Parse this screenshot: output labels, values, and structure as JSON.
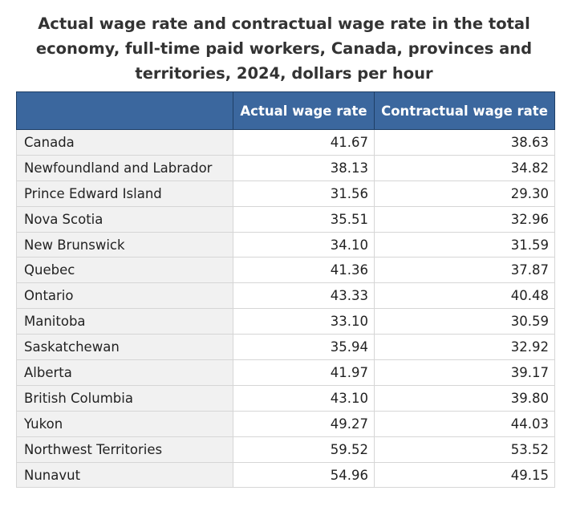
{
  "chart_data": {
    "type": "table",
    "title": "Actual wage rate and contractual wage rate in the total economy, full-time paid workers, Canada, provinces and territories, 2024, dollars per hour",
    "columns": [
      "",
      "Actual wage rate",
      "Contractual wage rate"
    ],
    "rows": [
      {
        "region": "Canada",
        "actual": "41.67",
        "contractual": "38.63"
      },
      {
        "region": "Newfoundland and Labrador",
        "actual": "38.13",
        "contractual": "34.82"
      },
      {
        "region": "Prince Edward Island",
        "actual": "31.56",
        "contractual": "29.30"
      },
      {
        "region": "Nova Scotia",
        "actual": "35.51",
        "contractual": "32.96"
      },
      {
        "region": "New Brunswick",
        "actual": "34.10",
        "contractual": "31.59"
      },
      {
        "region": "Quebec",
        "actual": "41.36",
        "contractual": "37.87"
      },
      {
        "region": "Ontario",
        "actual": "43.33",
        "contractual": "40.48"
      },
      {
        "region": "Manitoba",
        "actual": "33.10",
        "contractual": "30.59"
      },
      {
        "region": "Saskatchewan",
        "actual": "35.94",
        "contractual": "32.92"
      },
      {
        "region": "Alberta",
        "actual": "41.97",
        "contractual": "39.17"
      },
      {
        "region": "British Columbia",
        "actual": "43.10",
        "contractual": "39.80"
      },
      {
        "region": "Yukon",
        "actual": "49.27",
        "contractual": "44.03"
      },
      {
        "region": "Northwest Territories",
        "actual": "59.52",
        "contractual": "53.52"
      },
      {
        "region": "Nunavut",
        "actual": "54.96",
        "contractual": "49.15"
      }
    ]
  },
  "colors": {
    "header_bg": "#3b679e",
    "header_text": "#ffffff",
    "region_cell_bg": "#f1f1f1",
    "border": "#d6d6d6"
  }
}
